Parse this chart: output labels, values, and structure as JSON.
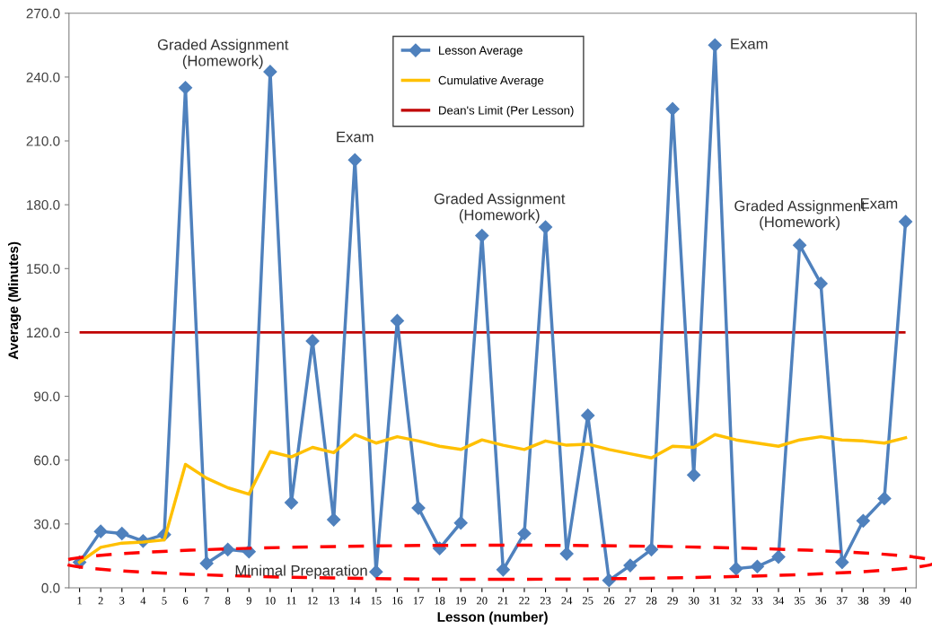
{
  "chart_data": {
    "type": "line",
    "xlabel": "Lesson (number)",
    "ylabel": "Average (Minutes)",
    "categories": [
      "1",
      "2",
      "3",
      "4",
      "5",
      "6",
      "7",
      "8",
      "9",
      "10",
      "11",
      "12",
      "13",
      "14",
      "15",
      "16",
      "17",
      "18",
      "19",
      "20",
      "21",
      "22",
      "23",
      "24",
      "25",
      "26",
      "27",
      "28",
      "29",
      "30",
      "31",
      "32",
      "33",
      "34",
      "35",
      "36",
      "37",
      "38",
      "39",
      "40"
    ],
    "series": [
      {
        "name": "Lesson Average",
        "color": "#4f81bd",
        "marker": "diamond",
        "values": [
          12,
          26.5,
          25.5,
          22,
          25,
          235,
          11.5,
          18,
          17,
          242.5,
          40,
          116,
          32,
          201,
          7.5,
          125.5,
          37.5,
          18.5,
          30.5,
          165.5,
          8.5,
          25.5,
          169.5,
          16,
          81,
          3.5,
          10.5,
          18,
          225,
          53,
          255,
          9,
          10,
          14.5,
          161,
          143,
          12,
          31.5,
          42,
          172
        ]
      },
      {
        "name": "Cumulative Average",
        "color": "#ffc000",
        "marker": "none",
        "values": [
          12,
          19,
          21,
          21.5,
          22.5,
          58,
          51.5,
          47,
          44,
          64,
          61.5,
          66,
          63.5,
          72,
          68,
          71,
          69,
          66.5,
          65,
          69.5,
          67,
          65,
          69,
          67,
          67.5,
          65,
          63,
          61,
          66.5,
          66,
          72,
          69.5,
          68,
          66.5,
          69.5,
          71,
          69.5,
          69,
          68,
          70.5
        ]
      }
    ],
    "ref_lines": [
      {
        "axis": "y",
        "value": 120,
        "label": "Dean's Limit (Per Lesson)",
        "color": "#c00000"
      }
    ],
    "ylim": [
      0,
      270
    ],
    "yticks": [
      {
        "value": 0,
        "label": "0.0"
      },
      {
        "value": 30,
        "label": "30.0"
      },
      {
        "value": 60,
        "label": "60.0"
      },
      {
        "value": 90,
        "label": "90.0"
      },
      {
        "value": 120,
        "label": "120.0"
      },
      {
        "value": 150,
        "label": "150.0"
      },
      {
        "value": 180,
        "label": "180.0"
      },
      {
        "value": 210,
        "label": "210.0"
      },
      {
        "value": 240,
        "label": "240.0"
      },
      {
        "value": 270,
        "label": "270.0"
      }
    ],
    "annotations": [
      {
        "text": "Graded Assignment\n(Homework)",
        "x": "6",
        "y": 235
      },
      {
        "text": "Exam",
        "x": "14",
        "y": 201
      },
      {
        "text": "Graded Assignment\n(Homework)",
        "x": "20",
        "y": 165.5
      },
      {
        "text": "Exam",
        "x": "31",
        "y": 255
      },
      {
        "text": "Graded Assignment\n(Homework)",
        "x": "35",
        "y": 161
      },
      {
        "text": "Exam",
        "x": "40",
        "y": 172
      },
      {
        "text": "Minimal Preparation",
        "x": "15",
        "y": 7.5
      }
    ],
    "legend": "top",
    "grid": false,
    "line_style": "solid"
  }
}
